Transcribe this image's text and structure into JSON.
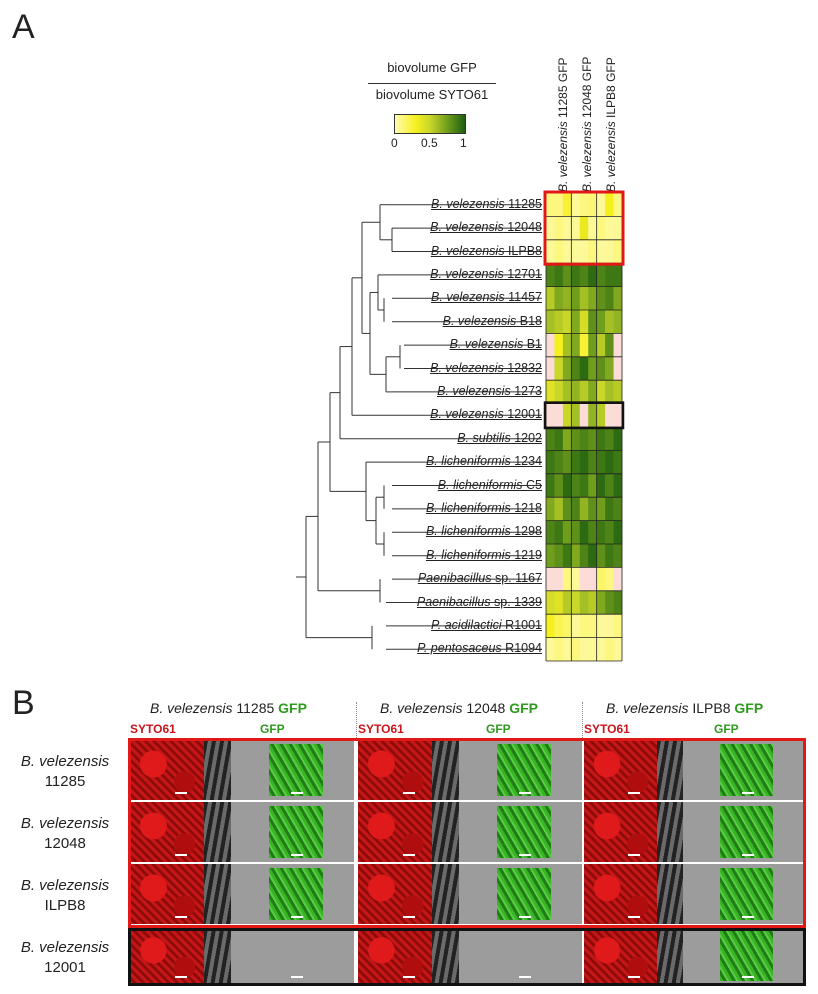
{
  "panel_a_letter": "A",
  "panel_b_letter": "B",
  "legend": {
    "numerator": "biovolume GFP",
    "denominator": "biovolume SYTO61",
    "ticks": [
      "0",
      "0.5",
      "1"
    ]
  },
  "heatmap": {
    "column_headers": [
      {
        "genus": "B. velezensis",
        "strain": "11285 GFP"
      },
      {
        "genus": "B. velezensis",
        "strain": "12048 GFP"
      },
      {
        "genus": "B. velezensis",
        "strain": "ILPB8 GFP"
      }
    ],
    "rows": [
      {
        "genus": "B. velezensis",
        "strain": "11285"
      },
      {
        "genus": "B. velezensis",
        "strain": "12048"
      },
      {
        "genus": "B. velezensis",
        "strain": "ILPB8"
      },
      {
        "genus": "B. velezensis",
        "strain": "12701"
      },
      {
        "genus": "B. velezensis",
        "strain": "11457"
      },
      {
        "genus": "B. velezensis",
        "strain": "B18"
      },
      {
        "genus": "B. velezensis",
        "strain": "B1"
      },
      {
        "genus": "B. velezensis",
        "strain": "12832"
      },
      {
        "genus": "B. velezensis",
        "strain": "1273"
      },
      {
        "genus": "B. velezensis",
        "strain": "12001"
      },
      {
        "genus": "B. subtilis",
        "strain": "1202"
      },
      {
        "genus": "B. licheniformis",
        "strain": "1234"
      },
      {
        "genus": "B. licheniformis",
        "strain": "C5"
      },
      {
        "genus": "B. licheniformis",
        "strain": "1218"
      },
      {
        "genus": "B. licheniformis",
        "strain": "1298"
      },
      {
        "genus": "B. licheniformis",
        "strain": "1219"
      },
      {
        "genus": "Paenibacillus",
        "strain": "sp. 1167"
      },
      {
        "genus": "Paenibacillus",
        "strain": "sp. 1339"
      },
      {
        "genus": "P. acidilactici",
        "strain": "R1001"
      },
      {
        "genus": "P. pentosaceus",
        "strain": "R1094"
      }
    ],
    "values": [
      [
        0.1,
        0.1,
        0.25,
        0.05,
        0.1,
        0.12,
        0.05,
        0.3,
        0.1
      ],
      [
        0.05,
        0.1,
        0.05,
        0.05,
        0.35,
        0.05,
        0.1,
        0.05,
        0.05
      ],
      [
        0.05,
        0.1,
        0.05,
        0.05,
        0.05,
        0.1,
        0.05,
        0.05,
        0.1
      ],
      [
        0.85,
        0.9,
        0.8,
        0.9,
        0.85,
        0.95,
        0.85,
        0.9,
        0.9
      ],
      [
        0.55,
        0.7,
        0.65,
        0.75,
        0.6,
        0.7,
        0.8,
        0.85,
        0.7
      ],
      [
        0.6,
        0.55,
        0.5,
        0.7,
        0.45,
        0.8,
        0.75,
        0.6,
        0.65
      ],
      [
        null,
        0.3,
        0.6,
        0.7,
        0.25,
        0.75,
        0.55,
        0.8,
        null
      ],
      [
        null,
        0.5,
        0.7,
        0.85,
        0.95,
        0.75,
        0.8,
        0.7,
        null
      ],
      [
        0.4,
        0.5,
        0.6,
        0.65,
        0.55,
        0.7,
        0.5,
        0.6,
        0.55
      ],
      [
        null,
        null,
        0.5,
        0.6,
        null,
        0.65,
        0.55,
        null,
        null
      ],
      [
        0.85,
        0.9,
        0.7,
        0.8,
        0.85,
        0.8,
        0.9,
        0.85,
        0.95
      ],
      [
        0.9,
        0.85,
        0.8,
        0.9,
        0.95,
        0.85,
        0.9,
        0.95,
        0.9
      ],
      [
        0.9,
        0.8,
        0.95,
        0.85,
        0.9,
        0.75,
        0.95,
        0.85,
        0.95
      ],
      [
        0.7,
        0.6,
        0.8,
        0.85,
        0.65,
        0.8,
        0.75,
        0.9,
        0.85
      ],
      [
        0.85,
        0.9,
        0.75,
        0.8,
        0.95,
        0.85,
        0.9,
        0.85,
        0.95
      ],
      [
        0.75,
        0.8,
        0.9,
        0.7,
        0.85,
        0.95,
        0.8,
        0.9,
        0.85
      ],
      [
        null,
        null,
        0.1,
        0.05,
        null,
        null,
        0.15,
        0.1,
        null
      ],
      [
        0.45,
        0.4,
        0.55,
        0.5,
        0.6,
        0.55,
        0.7,
        0.8,
        0.85
      ],
      [
        0.3,
        0.2,
        0.15,
        0.05,
        0.1,
        0.1,
        0.05,
        0.05,
        0.1
      ],
      [
        0.05,
        0.1,
        0.05,
        0.1,
        0.05,
        0.05,
        0.05,
        0.1,
        0.05
      ]
    ],
    "colors": {
      "low": "#fffbb0",
      "mid_low": "#f6f01e",
      "mid": "#c9d62a",
      "mid_high": "#6f9e1c",
      "high": "#1d5e10",
      "missing": "#fbdcd6",
      "highlight_red": "#e01818",
      "highlight_black": "#111111"
    }
  },
  "panel_b": {
    "column_headers": [
      {
        "genus": "B. velezensis",
        "strain": "11285",
        "tag": "GFP"
      },
      {
        "genus": "B. velezensis",
        "strain": "12048",
        "tag": "GFP"
      },
      {
        "genus": "B. velezensis",
        "strain": "ILPB8",
        "tag": "GFP"
      }
    ],
    "channel_red": "SYTO61",
    "channel_green": "GFP",
    "row_labels": [
      {
        "genus": "B. velezensis",
        "strain": "11285"
      },
      {
        "genus": "B. velezensis",
        "strain": "12048"
      },
      {
        "genus": "B. velezensis",
        "strain": "ILPB8"
      },
      {
        "genus": "B. velezensis",
        "strain": "12001"
      }
    ]
  }
}
